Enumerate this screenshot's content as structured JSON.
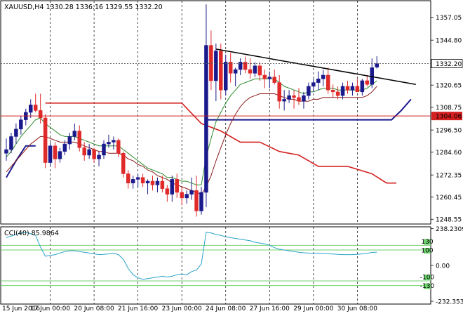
{
  "colors": {
    "background": "#ffffff",
    "grid": "#000000",
    "bull_candle": "#1a1a8c",
    "bear_candle": "#e02a2a",
    "ma_green": "#2e8b2e",
    "ma_maroon": "#8b1a1a",
    "red_step": "#d42020",
    "blue_step": "#1a1a8c",
    "trendline": "#000000",
    "cci_line": "#2aa3c8",
    "cci_levels": "#6fd26f",
    "price_tag_bg": "#d42020",
    "last_price_bg": "#ffffff"
  },
  "header": {
    "text": "XAUUSD,H4  1330.28 1336.16 1329.55 1332.20"
  },
  "cci_header": {
    "text": "CCI(40) 85.9864"
  },
  "chart_data": [
    {
      "type": "candlestick",
      "symbol": "XAUUSD",
      "timeframe": "H4",
      "ohlc_header": {
        "open": 1330.28,
        "high": 1336.16,
        "low": 1329.55,
        "close": 1332.2
      },
      "ylim": [
        1246.0,
        1366.0
      ],
      "y_ticks": [
        "1357.05",
        "1344.80",
        "1332.20",
        "1320.65",
        "1308.75",
        "1304.06",
        "1296.50",
        "1284.60",
        "1272.35",
        "1260.45",
        "1248.55"
      ],
      "x_ticks": [
        "15 Jun 2016",
        "17 Jun 00:00",
        "20 Jun 08:00",
        "21 Jun 16:00",
        "23 Jun 00:00",
        "24 Jun 08:00",
        "27 Jun 16:00",
        "29 Jun 00:00",
        "30 Jun 08:00"
      ],
      "last_price": 1332.2,
      "level_line": 1304.06,
      "candles": [
        [
          1284,
          1292,
          1280,
          1286
        ],
        [
          1286,
          1295,
          1284,
          1293
        ],
        [
          1293,
          1300,
          1289,
          1297
        ],
        [
          1297,
          1304,
          1294,
          1302
        ],
        [
          1302,
          1308,
          1299,
          1306
        ],
        [
          1306,
          1313,
          1303,
          1310
        ],
        [
          1310,
          1316,
          1306,
          1307
        ],
        [
          1307,
          1316,
          1300,
          1303
        ],
        [
          1303,
          1305,
          1276,
          1279
        ],
        [
          1279,
          1290,
          1277,
          1288
        ],
        [
          1288,
          1290,
          1276,
          1281
        ],
        [
          1281,
          1287,
          1279,
          1285
        ],
        [
          1285,
          1291,
          1283,
          1289
        ],
        [
          1289,
          1295,
          1286,
          1293
        ],
        [
          1293,
          1300,
          1291,
          1296
        ],
        [
          1296,
          1299,
          1285,
          1287
        ],
        [
          1287,
          1290,
          1280,
          1283
        ],
        [
          1283,
          1289,
          1281,
          1286
        ],
        [
          1286,
          1287,
          1279,
          1281
        ],
        [
          1281,
          1285,
          1277,
          1283
        ],
        [
          1283,
          1291,
          1281,
          1289
        ],
        [
          1289,
          1294,
          1287,
          1290
        ],
        [
          1290,
          1293,
          1286,
          1291
        ],
        [
          1291,
          1292,
          1282,
          1284
        ],
        [
          1284,
          1285,
          1271,
          1273
        ],
        [
          1273,
          1275,
          1265,
          1268
        ],
        [
          1268,
          1272,
          1265,
          1270
        ],
        [
          1270,
          1273,
          1266,
          1271
        ],
        [
          1271,
          1273,
          1266,
          1268
        ],
        [
          1268,
          1270,
          1262,
          1269
        ],
        [
          1269,
          1272,
          1264,
          1267
        ],
        [
          1267,
          1271,
          1263,
          1269
        ],
        [
          1269,
          1272,
          1263,
          1265
        ],
        [
          1265,
          1267,
          1258,
          1262
        ],
        [
          1262,
          1272,
          1258,
          1270
        ],
        [
          1270,
          1273,
          1260,
          1263
        ],
        [
          1263,
          1266,
          1256,
          1260
        ],
        [
          1260,
          1264,
          1257,
          1262
        ],
        [
          1262,
          1271,
          1259,
          1264
        ],
        [
          1264,
          1272,
          1250,
          1253
        ],
        [
          1253,
          1266,
          1251,
          1263
        ],
        [
          1263,
          1364,
          1255,
          1342
        ],
        [
          1342,
          1350,
          1318,
          1323
        ],
        [
          1323,
          1343,
          1312,
          1339
        ],
        [
          1339,
          1343,
          1313,
          1318
        ],
        [
          1318,
          1337,
          1315,
          1333
        ],
        [
          1333,
          1338,
          1322,
          1327
        ],
        [
          1327,
          1330,
          1320,
          1329
        ],
        [
          1329,
          1335,
          1326,
          1333
        ],
        [
          1333,
          1336,
          1327,
          1329
        ],
        [
          1329,
          1335,
          1324,
          1327
        ],
        [
          1327,
          1333,
          1325,
          1331
        ],
        [
          1331,
          1333,
          1323,
          1326
        ],
        [
          1326,
          1329,
          1319,
          1324
        ],
        [
          1324,
          1328,
          1319,
          1325
        ],
        [
          1325,
          1329,
          1321,
          1322
        ],
        [
          1322,
          1326,
          1308,
          1312
        ],
        [
          1312,
          1318,
          1307,
          1313
        ],
        [
          1313,
          1318,
          1311,
          1315
        ],
        [
          1315,
          1318,
          1308,
          1314
        ],
        [
          1314,
          1319,
          1310,
          1312
        ],
        [
          1312,
          1317,
          1308,
          1315
        ],
        [
          1315,
          1322,
          1313,
          1320
        ],
        [
          1320,
          1324,
          1317,
          1322
        ],
        [
          1322,
          1328,
          1318,
          1324
        ],
        [
          1324,
          1329,
          1320,
          1326
        ],
        [
          1326,
          1330,
          1316,
          1318
        ],
        [
          1318,
          1321,
          1314,
          1317
        ],
        [
          1317,
          1320,
          1313,
          1315
        ],
        [
          1315,
          1322,
          1313,
          1320
        ],
        [
          1320,
          1323,
          1316,
          1318
        ],
        [
          1318,
          1322,
          1315,
          1320
        ],
        [
          1320,
          1324,
          1317,
          1317
        ],
        [
          1317,
          1324,
          1315,
          1323
        ],
        [
          1323,
          1326,
          1320,
          1321
        ],
        [
          1321,
          1335,
          1319,
          1330
        ],
        [
          1330.28,
          1336.16,
          1329.55,
          1332.2
        ]
      ],
      "ma_fast": [
        1282,
        1285,
        1289,
        1293,
        1296,
        1299,
        1302,
        1303,
        1300,
        1298,
        1296,
        1294,
        1293,
        1293,
        1293,
        1292,
        1291,
        1290,
        1289,
        1288,
        1288,
        1288,
        1288,
        1288,
        1286,
        1284,
        1282,
        1280,
        1278,
        1276,
        1275,
        1274,
        1273,
        1271,
        1271,
        1270,
        1269,
        1269,
        1268,
        1267,
        1267,
        1282,
        1292,
        1301,
        1306,
        1311,
        1315,
        1318,
        1321,
        1322,
        1323,
        1324,
        1324,
        1324,
        1324,
        1324,
        1322,
        1320,
        1319,
        1318,
        1317,
        1316,
        1317,
        1317,
        1318,
        1319,
        1319,
        1319,
        1318,
        1318,
        1318,
        1318,
        1318,
        1318,
        1319,
        1321,
        1323
      ],
      "ma_slow": [
        1274,
        1277,
        1280,
        1283,
        1286,
        1289,
        1291,
        1293,
        1293,
        1292,
        1291,
        1290,
        1290,
        1290,
        1290,
        1289,
        1288,
        1287,
        1286,
        1285,
        1285,
        1284,
        1284,
        1284,
        1283,
        1281,
        1280,
        1278,
        1277,
        1275,
        1274,
        1272,
        1271,
        1270,
        1268,
        1267,
        1266,
        1265,
        1264,
        1263,
        1262,
        1266,
        1272,
        1280,
        1287,
        1294,
        1300,
        1305,
        1309,
        1312,
        1314,
        1315,
        1316,
        1316,
        1316,
        1316,
        1315,
        1314,
        1313,
        1313,
        1312,
        1312,
        1312,
        1313,
        1313,
        1314,
        1314,
        1314,
        1314,
        1314,
        1314,
        1314,
        1314,
        1314,
        1315,
        1317,
        1320
      ],
      "red_step": [
        [
          8,
          1311
        ],
        [
          36,
          1311
        ],
        [
          40,
          1300
        ],
        [
          44,
          1296
        ],
        [
          48,
          1290
        ],
        [
          52,
          1290
        ],
        [
          56,
          1285
        ],
        [
          60,
          1283
        ],
        [
          64,
          1277
        ],
        [
          70,
          1277
        ],
        [
          75,
          1273
        ],
        [
          78,
          1268
        ],
        [
          80,
          1268
        ]
      ],
      "blue_step_left": [
        [
          0,
          1271
        ],
        [
          2,
          1280
        ],
        [
          4,
          1288
        ],
        [
          6,
          1288
        ]
      ],
      "blue_step_right": [
        [
          41,
          1302
        ],
        [
          79,
          1302
        ],
        [
          81,
          1307
        ],
        [
          83,
          1313
        ]
      ],
      "trendline": [
        [
          43,
          1340
        ],
        [
          84,
          1321
        ]
      ]
    },
    {
      "type": "line",
      "name": "CCI(40)",
      "value": 85.9864,
      "ylim": [
        -250,
        250
      ],
      "y_ticks": [
        "238.2309",
        "0.00",
        "-232.3535"
      ],
      "levels": [
        100,
        130,
        -100,
        -130
      ],
      "level_labels": [
        "130",
        "100",
        "-100",
        "-130"
      ],
      "values": [
        180,
        190,
        200,
        210,
        215,
        205,
        195,
        120,
        60,
        65,
        70,
        80,
        90,
        95,
        95,
        90,
        85,
        80,
        75,
        70,
        72,
        75,
        78,
        70,
        40,
        -20,
        -60,
        -80,
        -90,
        -85,
        -80,
        -75,
        -70,
        -75,
        -70,
        -60,
        -55,
        -60,
        -40,
        -30,
        10,
        215,
        210,
        200,
        195,
        185,
        180,
        175,
        170,
        165,
        160,
        150,
        145,
        140,
        130,
        115,
        105,
        100,
        95,
        90,
        85,
        82,
        80,
        78,
        80,
        78,
        76,
        74,
        72,
        70,
        70,
        70,
        72,
        75,
        78,
        84,
        86
      ]
    }
  ]
}
